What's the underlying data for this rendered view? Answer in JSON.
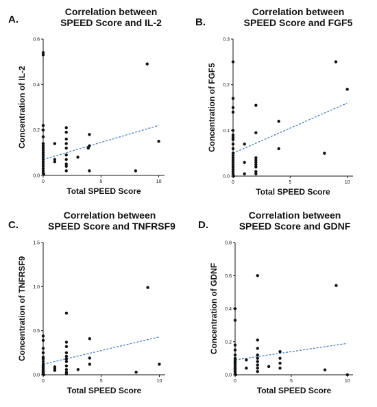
{
  "chart_data": [
    {
      "type": "scatter",
      "panel_label": "A.",
      "title_line1": "Correlation between",
      "title_line2": "SPEED Score and IL-2",
      "xlabel": "Total SPEED Score",
      "ylabel": "Concentration of IL-2",
      "xlim": [
        0,
        10.5
      ],
      "ylim": [
        0,
        0.6
      ],
      "xticks": [
        0,
        5,
        10
      ],
      "yticks": [
        0.0,
        0.2,
        0.4,
        0.6
      ],
      "ytick_labels": [
        "0.0",
        "0.2",
        "0.4",
        "0.6"
      ],
      "point_color": "#111111",
      "trend_color": "#4a7fc1",
      "trendline": {
        "x": [
          0,
          10
        ],
        "y": [
          0.07,
          0.22
        ]
      },
      "points": [
        [
          0,
          0.54
        ],
        [
          0,
          0.53
        ],
        [
          0,
          0.22
        ],
        [
          0,
          0.2
        ],
        [
          0,
          0.17
        ],
        [
          0,
          0.14
        ],
        [
          0,
          0.13
        ],
        [
          0,
          0.12
        ],
        [
          0,
          0.11
        ],
        [
          0,
          0.1
        ],
        [
          0,
          0.09
        ],
        [
          0,
          0.08
        ],
        [
          0,
          0.07
        ],
        [
          0,
          0.06
        ],
        [
          0,
          0.05
        ],
        [
          0,
          0.04
        ],
        [
          0,
          0.03
        ],
        [
          0,
          0.02
        ],
        [
          0,
          0.01
        ],
        [
          0.05,
          0.005
        ],
        [
          1,
          0.14
        ],
        [
          1,
          0.07
        ],
        [
          1,
          0.06
        ],
        [
          2,
          0.21
        ],
        [
          2,
          0.19
        ],
        [
          2,
          0.16
        ],
        [
          2,
          0.14
        ],
        [
          2,
          0.12
        ],
        [
          2,
          0.09
        ],
        [
          2,
          0.07
        ],
        [
          2,
          0.05
        ],
        [
          2,
          0.04
        ],
        [
          2,
          0.02
        ],
        [
          3,
          0.08
        ],
        [
          4,
          0.18
        ],
        [
          4,
          0.13
        ],
        [
          3.9,
          0.12
        ],
        [
          4,
          0.02
        ],
        [
          8,
          0.02
        ],
        [
          9,
          0.49
        ],
        [
          10,
          0.15
        ]
      ]
    },
    {
      "type": "scatter",
      "panel_label": "B.",
      "title_line1": "Correlation between",
      "title_line2": "SPEED Score and FGF5",
      "xlabel": "Total SPEED Score",
      "ylabel": "Concentration of FGF5",
      "xlim": [
        0,
        10.5
      ],
      "ylim": [
        0,
        0.3
      ],
      "xticks": [
        0,
        5,
        10
      ],
      "yticks": [
        0.0,
        0.1,
        0.2,
        0.3
      ],
      "ytick_labels": [
        "0.0",
        "0.1",
        "0.2",
        "0.3"
      ],
      "point_color": "#111111",
      "trend_color": "#4a7fc1",
      "trendline": {
        "x": [
          0,
          10
        ],
        "y": [
          0.05,
          0.16
        ]
      },
      "points": [
        [
          0,
          0.25
        ],
        [
          0,
          0.17
        ],
        [
          0,
          0.15
        ],
        [
          0,
          0.14
        ],
        [
          0,
          0.1
        ],
        [
          0,
          0.09
        ],
        [
          0,
          0.085
        ],
        [
          0,
          0.08
        ],
        [
          0,
          0.07
        ],
        [
          0,
          0.06
        ],
        [
          0,
          0.05
        ],
        [
          0,
          0.045
        ],
        [
          0,
          0.04
        ],
        [
          0,
          0.035
        ],
        [
          0,
          0.03
        ],
        [
          0,
          0.025
        ],
        [
          0,
          0.02
        ],
        [
          0,
          0.015
        ],
        [
          0,
          0.01
        ],
        [
          0,
          0.005
        ],
        [
          0.05,
          0.0
        ],
        [
          1,
          0.07
        ],
        [
          1,
          0.03
        ],
        [
          1,
          0.005
        ],
        [
          2,
          0.155
        ],
        [
          2,
          0.095
        ],
        [
          2,
          0.04
        ],
        [
          2,
          0.035
        ],
        [
          2,
          0.03
        ],
        [
          2,
          0.025
        ],
        [
          2,
          0.02
        ],
        [
          2,
          0.01
        ],
        [
          2,
          0.005
        ],
        [
          4,
          0.12
        ],
        [
          4,
          0.06
        ],
        [
          8,
          0.05
        ],
        [
          9,
          0.25
        ],
        [
          10,
          0.19
        ]
      ]
    },
    {
      "type": "scatter",
      "panel_label": "C.",
      "title_line1": "Correlation between",
      "title_line2": "SPEED Score and TNFRSF9",
      "xlabel": "Total SPEED Score",
      "ylabel": "Concentration of TNFRSF9",
      "xlim": [
        0,
        10.5
      ],
      "ylim": [
        0,
        1.5
      ],
      "xticks": [
        0,
        5,
        10
      ],
      "yticks": [
        0.0,
        0.5,
        1.0,
        1.5
      ],
      "ytick_labels": [
        "0.0",
        "0.5",
        "1.0",
        "1.5"
      ],
      "point_color": "#111111",
      "trend_color": "#4a7fc1",
      "trendline": {
        "x": [
          0,
          10
        ],
        "y": [
          0.12,
          0.43
        ]
      },
      "points": [
        [
          0,
          0.44
        ],
        [
          0,
          0.39
        ],
        [
          0,
          0.3
        ],
        [
          0,
          0.25
        ],
        [
          0,
          0.2
        ],
        [
          0,
          0.18
        ],
        [
          0,
          0.15
        ],
        [
          0,
          0.12
        ],
        [
          0,
          0.1
        ],
        [
          0,
          0.08
        ],
        [
          0,
          0.06
        ],
        [
          0,
          0.05
        ],
        [
          0,
          0.04
        ],
        [
          0,
          0.03
        ],
        [
          0,
          0.02
        ],
        [
          0,
          0.01
        ],
        [
          0.05,
          0.0
        ],
        [
          1,
          0.09
        ],
        [
          1,
          0.07
        ],
        [
          1,
          0.05
        ],
        [
          2,
          0.7
        ],
        [
          2,
          0.37
        ],
        [
          2,
          0.32
        ],
        [
          2,
          0.25
        ],
        [
          2,
          0.21
        ],
        [
          2,
          0.18
        ],
        [
          2,
          0.15
        ],
        [
          2,
          0.1
        ],
        [
          2,
          0.06
        ],
        [
          2,
          0.03
        ],
        [
          2,
          0.01
        ],
        [
          3,
          0.06
        ],
        [
          4,
          0.41
        ],
        [
          4,
          0.19
        ],
        [
          4,
          0.12
        ],
        [
          8,
          0.03
        ],
        [
          9,
          0.99
        ],
        [
          10,
          0.12
        ]
      ]
    },
    {
      "type": "scatter",
      "panel_label": "D.",
      "title_line1": "Correlation between",
      "title_line2": "SPEED Score and GDNF",
      "xlabel": "Total SPEED Score",
      "ylabel": "Concentration of GDNF",
      "xlim": [
        0,
        10.5
      ],
      "ylim": [
        0,
        0.8
      ],
      "xticks": [
        0,
        5,
        10
      ],
      "yticks": [
        0.0,
        0.2,
        0.4,
        0.6,
        0.8
      ],
      "ytick_labels": [
        "0.0",
        "0.2",
        "0.4",
        "0.6",
        "0.8"
      ],
      "point_color": "#111111",
      "trend_color": "#4a7fc1",
      "trendline": {
        "x": [
          0,
          10
        ],
        "y": [
          0.09,
          0.19
        ]
      },
      "points": [
        [
          0,
          0.4
        ],
        [
          0,
          0.33
        ],
        [
          0,
          0.18
        ],
        [
          0,
          0.15
        ],
        [
          0,
          0.12
        ],
        [
          0,
          0.1
        ],
        [
          0,
          0.09
        ],
        [
          0,
          0.08
        ],
        [
          0,
          0.07
        ],
        [
          0,
          0.06
        ],
        [
          0,
          0.05
        ],
        [
          0,
          0.04
        ],
        [
          0,
          0.03
        ],
        [
          0,
          0.02
        ],
        [
          0,
          0.01
        ],
        [
          0.05,
          0.0
        ],
        [
          1,
          0.09
        ],
        [
          1,
          0.04
        ],
        [
          2,
          0.6
        ],
        [
          2,
          0.21
        ],
        [
          2,
          0.16
        ],
        [
          2,
          0.12
        ],
        [
          2,
          0.1
        ],
        [
          2,
          0.08
        ],
        [
          2,
          0.06
        ],
        [
          2,
          0.04
        ],
        [
          2,
          0.02
        ],
        [
          3,
          0.05
        ],
        [
          4,
          0.14
        ],
        [
          4,
          0.1
        ],
        [
          4,
          0.07
        ],
        [
          4,
          0.04
        ],
        [
          8,
          0.03
        ],
        [
          9,
          0.54
        ],
        [
          10,
          0.0
        ]
      ]
    }
  ]
}
